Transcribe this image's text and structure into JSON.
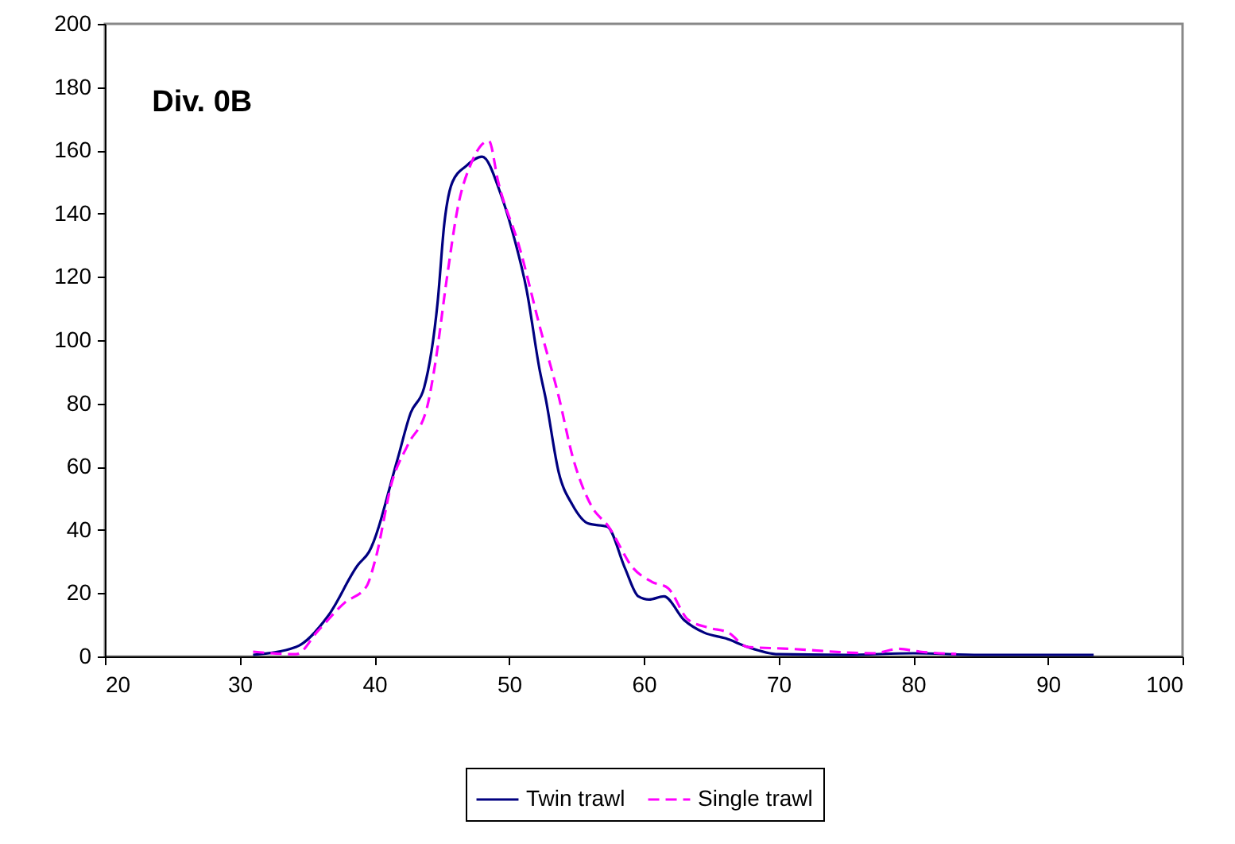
{
  "chart_data": {
    "type": "line",
    "title": "Div. 0B",
    "xlim": [
      20,
      100
    ],
    "xticks": [
      20,
      30,
      40,
      50,
      60,
      70,
      80,
      90,
      100
    ],
    "ylim": [
      0,
      200
    ],
    "yticks": [
      0,
      20,
      40,
      60,
      80,
      100,
      120,
      140,
      160,
      180,
      200
    ],
    "grid": false,
    "legend": "bottom",
    "series": [
      {
        "name": "Twin trawl",
        "color": "#000080",
        "line_style": "solid",
        "x": [
          31,
          34.2,
          36.6,
          38.8,
          39.6,
          41.7,
          42.7,
          43.7,
          44.7,
          45.2,
          45.8,
          46.8,
          48,
          49.4,
          50.4,
          51.3,
          52.3,
          52.7,
          53.7,
          54.7,
          55.9,
          57.3,
          58.6,
          59.6,
          60.4,
          61.5,
          63,
          64.5,
          66.1,
          67.7,
          70,
          75,
          80,
          85,
          93.4
        ],
        "values": [
          0.5,
          3,
          13,
          29,
          33,
          62,
          77,
          85,
          112,
          137,
          150,
          155,
          158,
          146,
          132,
          116,
          90,
          82,
          58,
          48,
          42,
          41,
          28,
          19,
          18,
          19,
          11.5,
          7.5,
          5.7,
          3,
          0.7,
          0.5,
          1,
          0.5,
          0.5
        ]
      },
      {
        "name": "Single trawl",
        "color": "#ff00ff",
        "line_style": "dashed",
        "x": [
          31,
          34.2,
          35.8,
          37.8,
          39.4,
          40.1,
          41.3,
          42.5,
          43.9,
          44.5,
          45.4,
          46.2,
          47.2,
          48.5,
          49.2,
          50.8,
          52.3,
          53.7,
          54.7,
          56.1,
          57.4,
          59.2,
          60.6,
          61.8,
          63.3,
          64.9,
          66.3,
          67.7,
          70.4,
          77.1,
          78.9,
          80.5,
          83.2
        ],
        "values": [
          1.5,
          0.7,
          8,
          17,
          22,
          31,
          55,
          67,
          78.5,
          92,
          120,
          142,
          156,
          163,
          150,
          129,
          104,
          82,
          63.5,
          47.7,
          41,
          28,
          23.6,
          21.6,
          11.6,
          9,
          7.5,
          3,
          2.5,
          1,
          2.4,
          1.5,
          0.8
        ]
      }
    ]
  }
}
